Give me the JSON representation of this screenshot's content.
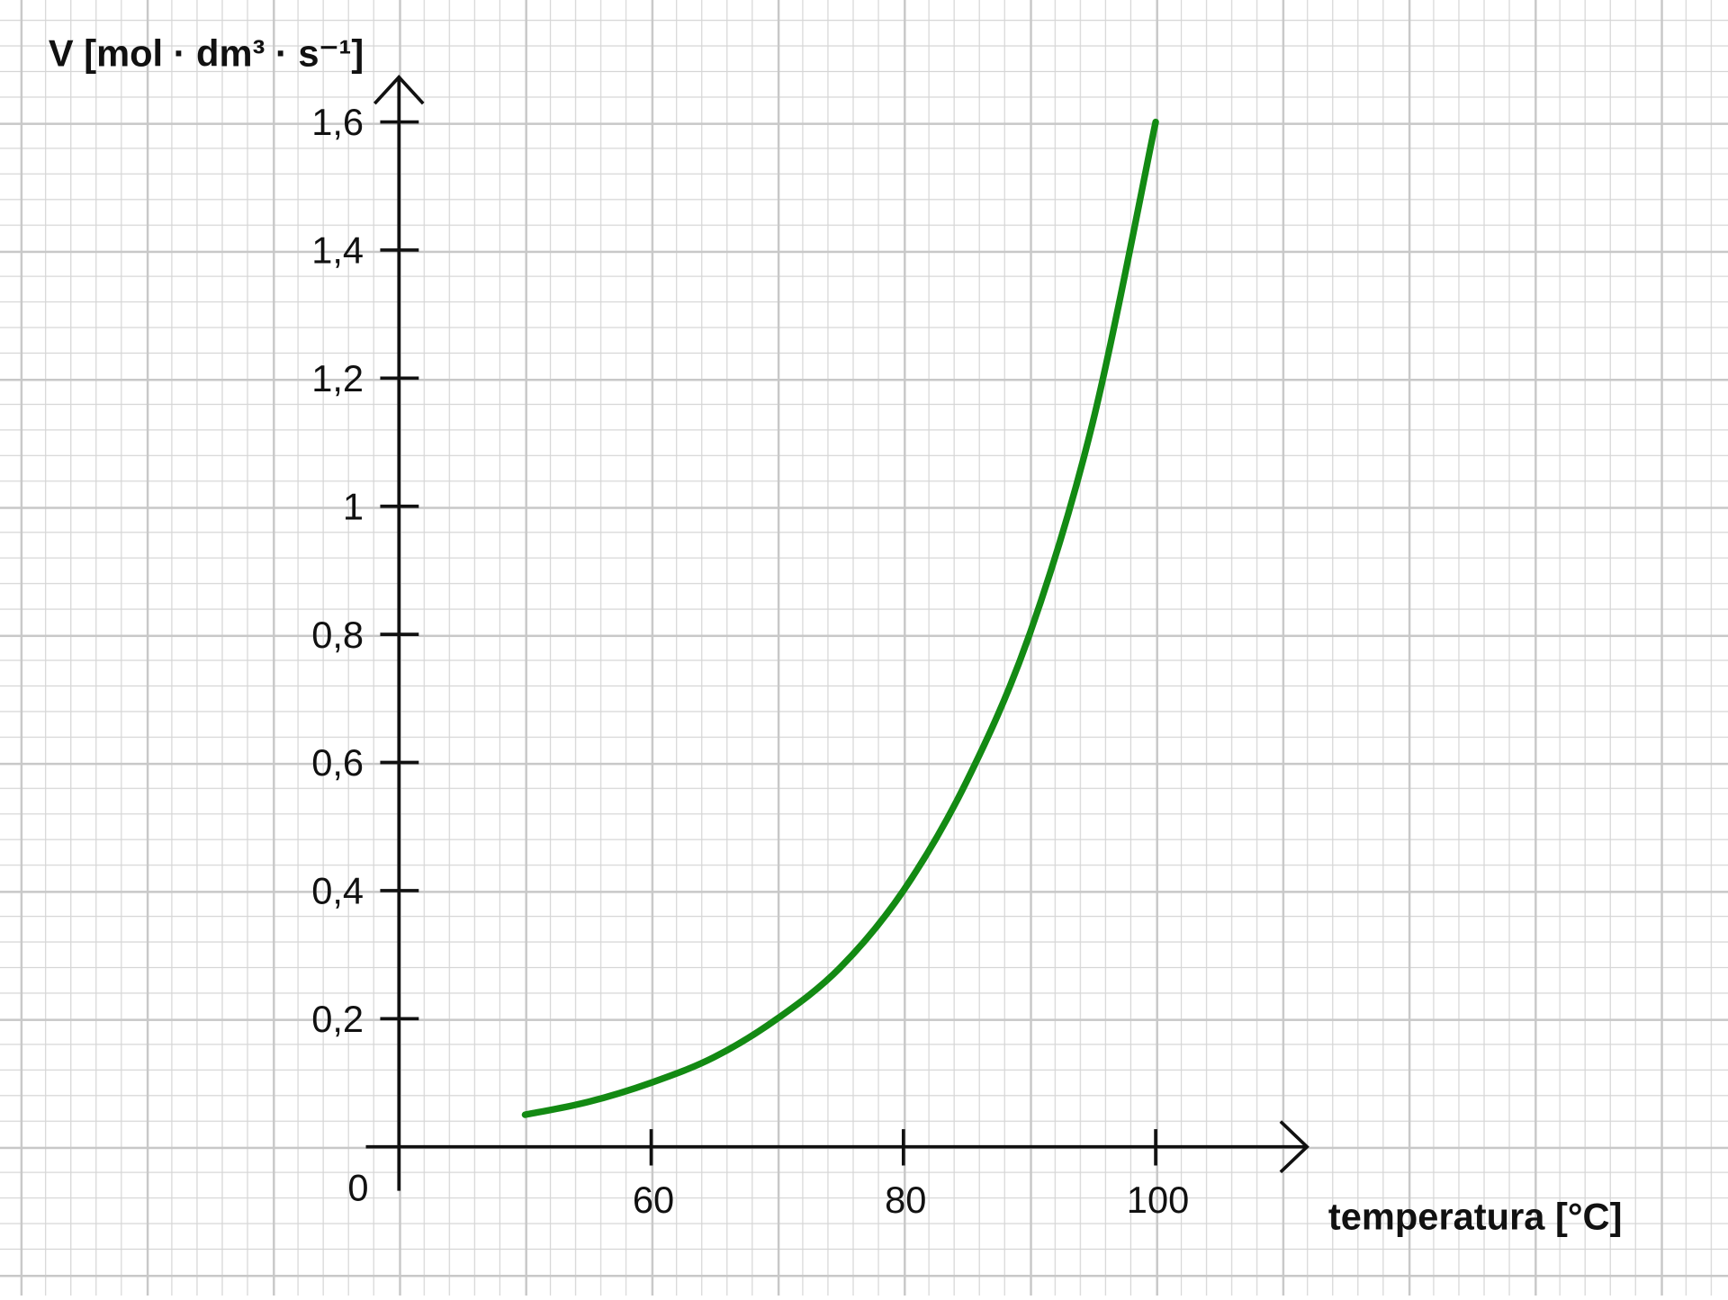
{
  "chart_data": {
    "type": "line",
    "y_label": "V [mol · dm³ · s⁻¹]",
    "x_label": "temperatura [°C]",
    "origin_label": "0",
    "x": [
      50,
      55,
      60,
      65,
      70,
      75,
      80,
      85,
      90,
      95,
      100
    ],
    "series": [
      {
        "color": "#138a13",
        "values": [
          0.05,
          0.07,
          0.1,
          0.14,
          0.2,
          0.28,
          0.4,
          0.57,
          0.8,
          1.13,
          1.6
        ]
      }
    ],
    "xlim": [
      40,
      112
    ],
    "ylim": [
      0,
      1.67
    ],
    "xticks": [
      60,
      80,
      100
    ],
    "yticks": [
      {
        "value": 0.2,
        "label": "0,2"
      },
      {
        "value": 0.4,
        "label": "0,4"
      },
      {
        "value": 0.6,
        "label": "0,6"
      },
      {
        "value": 0.8,
        "label": "0,8"
      },
      1,
      {
        "value": 1.2,
        "label": "1,2"
      },
      {
        "value": 1.4,
        "label": "1,4"
      },
      {
        "value": 1.6,
        "label": "1,6"
      }
    ]
  }
}
